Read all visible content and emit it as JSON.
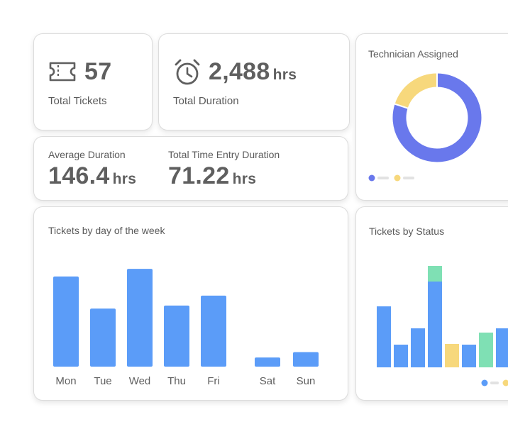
{
  "colors": {
    "blue": "#5b9cf8",
    "indigo": "#6978ec",
    "yellow": "#f7d87c",
    "green": "#7fe0b4",
    "legend_line": "#e2e2e2"
  },
  "kpis": {
    "total_tickets": {
      "icon": "ticket-icon",
      "value": "57",
      "label": "Total Tickets"
    },
    "total_duration": {
      "icon": "alarm-clock-icon",
      "value": "2,488",
      "unit": "hrs",
      "label": "Total Duration"
    },
    "average_duration": {
      "label": "Average Duration",
      "value": "146.4",
      "unit": "hrs"
    },
    "total_time_entry_duration": {
      "label": "Total Time Entry Duration",
      "value": "71.22",
      "unit": "hrs"
    }
  },
  "technician": {
    "title": "Technician Assigned"
  },
  "day_chart": {
    "title": "Tickets by day of the week"
  },
  "status_chart": {
    "title": "Tickets by Status"
  },
  "chart_data": [
    {
      "id": "technician-assigned",
      "type": "pie",
      "title": "Technician Assigned",
      "series": [
        {
          "value": 80,
          "color": "#6978ec"
        },
        {
          "value": 20,
          "color": "#f7d87c"
        }
      ]
    },
    {
      "id": "tickets-by-day",
      "type": "bar",
      "title": "Tickets by day of the week",
      "categories": [
        "Mon",
        "Tue",
        "Wed",
        "Thu",
        "Fri",
        "Sat",
        "Sun"
      ],
      "values": [
        11.8,
        7.6,
        12.8,
        8.0,
        9.3,
        1.2,
        1.9
      ],
      "ylim": [
        0,
        13
      ],
      "color": "#5b9cf8",
      "grid": false
    },
    {
      "id": "tickets-by-status",
      "type": "bar",
      "title": "Tickets by Status",
      "stacked": true,
      "grid": false,
      "bars": [
        {
          "segments": [
            {
              "value": 8.6,
              "color": "#5b9cf8"
            }
          ]
        },
        {
          "segments": [
            {
              "value": 3.2,
              "color": "#5b9cf8"
            }
          ]
        },
        {
          "segments": [
            {
              "value": 5.5,
              "color": "#5b9cf8"
            }
          ]
        },
        {
          "segments": [
            {
              "value": 12.1,
              "color": "#5b9cf8"
            },
            {
              "value": 2.2,
              "color": "#7fe0b4"
            }
          ]
        },
        {
          "segments": [
            {
              "value": 3.3,
              "color": "#f7d87c"
            }
          ]
        },
        {
          "segments": [
            {
              "value": 3.2,
              "color": "#5b9cf8"
            }
          ]
        },
        {
          "segments": [
            {
              "value": 4.9,
              "color": "#7fe0b4"
            }
          ]
        },
        {
          "segments": [
            {
              "value": 5.5,
              "color": "#5b9cf8"
            }
          ]
        }
      ],
      "ylim": [
        0,
        14.3
      ]
    }
  ]
}
